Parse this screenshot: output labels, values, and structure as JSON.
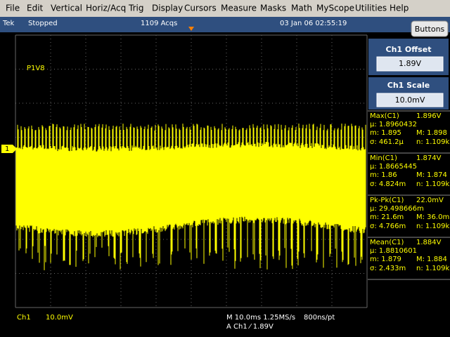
{
  "menu": [
    "File",
    "Edit",
    "Vertical",
    "Horiz/Acq",
    "Trig",
    "Display",
    "Cursors",
    "Measure",
    "Masks",
    "Math",
    "MyScope",
    "Utilities",
    "Help"
  ],
  "status": {
    "brand": "Tek",
    "state": "Stopped",
    "acqs": "1109 Acqs",
    "datetime": "03 Jan 06 02:55:19",
    "button": "Buttons"
  },
  "waveform": {
    "label": "P1V8",
    "channel_marker": "1"
  },
  "panel": {
    "offset": {
      "title": "Ch1 Offset",
      "value": "1.89V"
    },
    "scale": {
      "title": "Ch1 Scale",
      "value": "10.0mV"
    }
  },
  "measurements": [
    {
      "name": "Max(C1)",
      "value": "1.896V",
      "mean": "µ: 1.8960432",
      "min": "m: 1.895",
      "max": "M: 1.898",
      "std": "σ: 461.2µ",
      "count": "n: 1.109k"
    },
    {
      "name": "Min(C1)",
      "value": "1.874V",
      "mean": "µ: 1.8665445",
      "min": "m: 1.86",
      "max": "M: 1.874",
      "std": "σ: 4.824m",
      "count": "n: 1.109k"
    },
    {
      "name": "Pk-Pk(C1)",
      "value": "22.0mV",
      "mean": "µ: 29.498666m",
      "min": "m: 21.6m",
      "max": "M: 36.0m",
      "std": "σ: 4.766m",
      "count": "n: 1.109k"
    },
    {
      "name": "Mean(C1)",
      "value": "1.884V",
      "mean": "µ: 1.8810601",
      "min": "m: 1.879",
      "max": "M: 1.884",
      "std": "σ: 2.433m",
      "count": "n: 1.109k"
    }
  ],
  "footer": {
    "channel": "Ch1",
    "scale": "10.0mV",
    "timebase": "M 10.0ms 1.25MS/s",
    "resolution": "800ns/pt",
    "trigger": "A Ch1 ⁄ 1.89V"
  }
}
